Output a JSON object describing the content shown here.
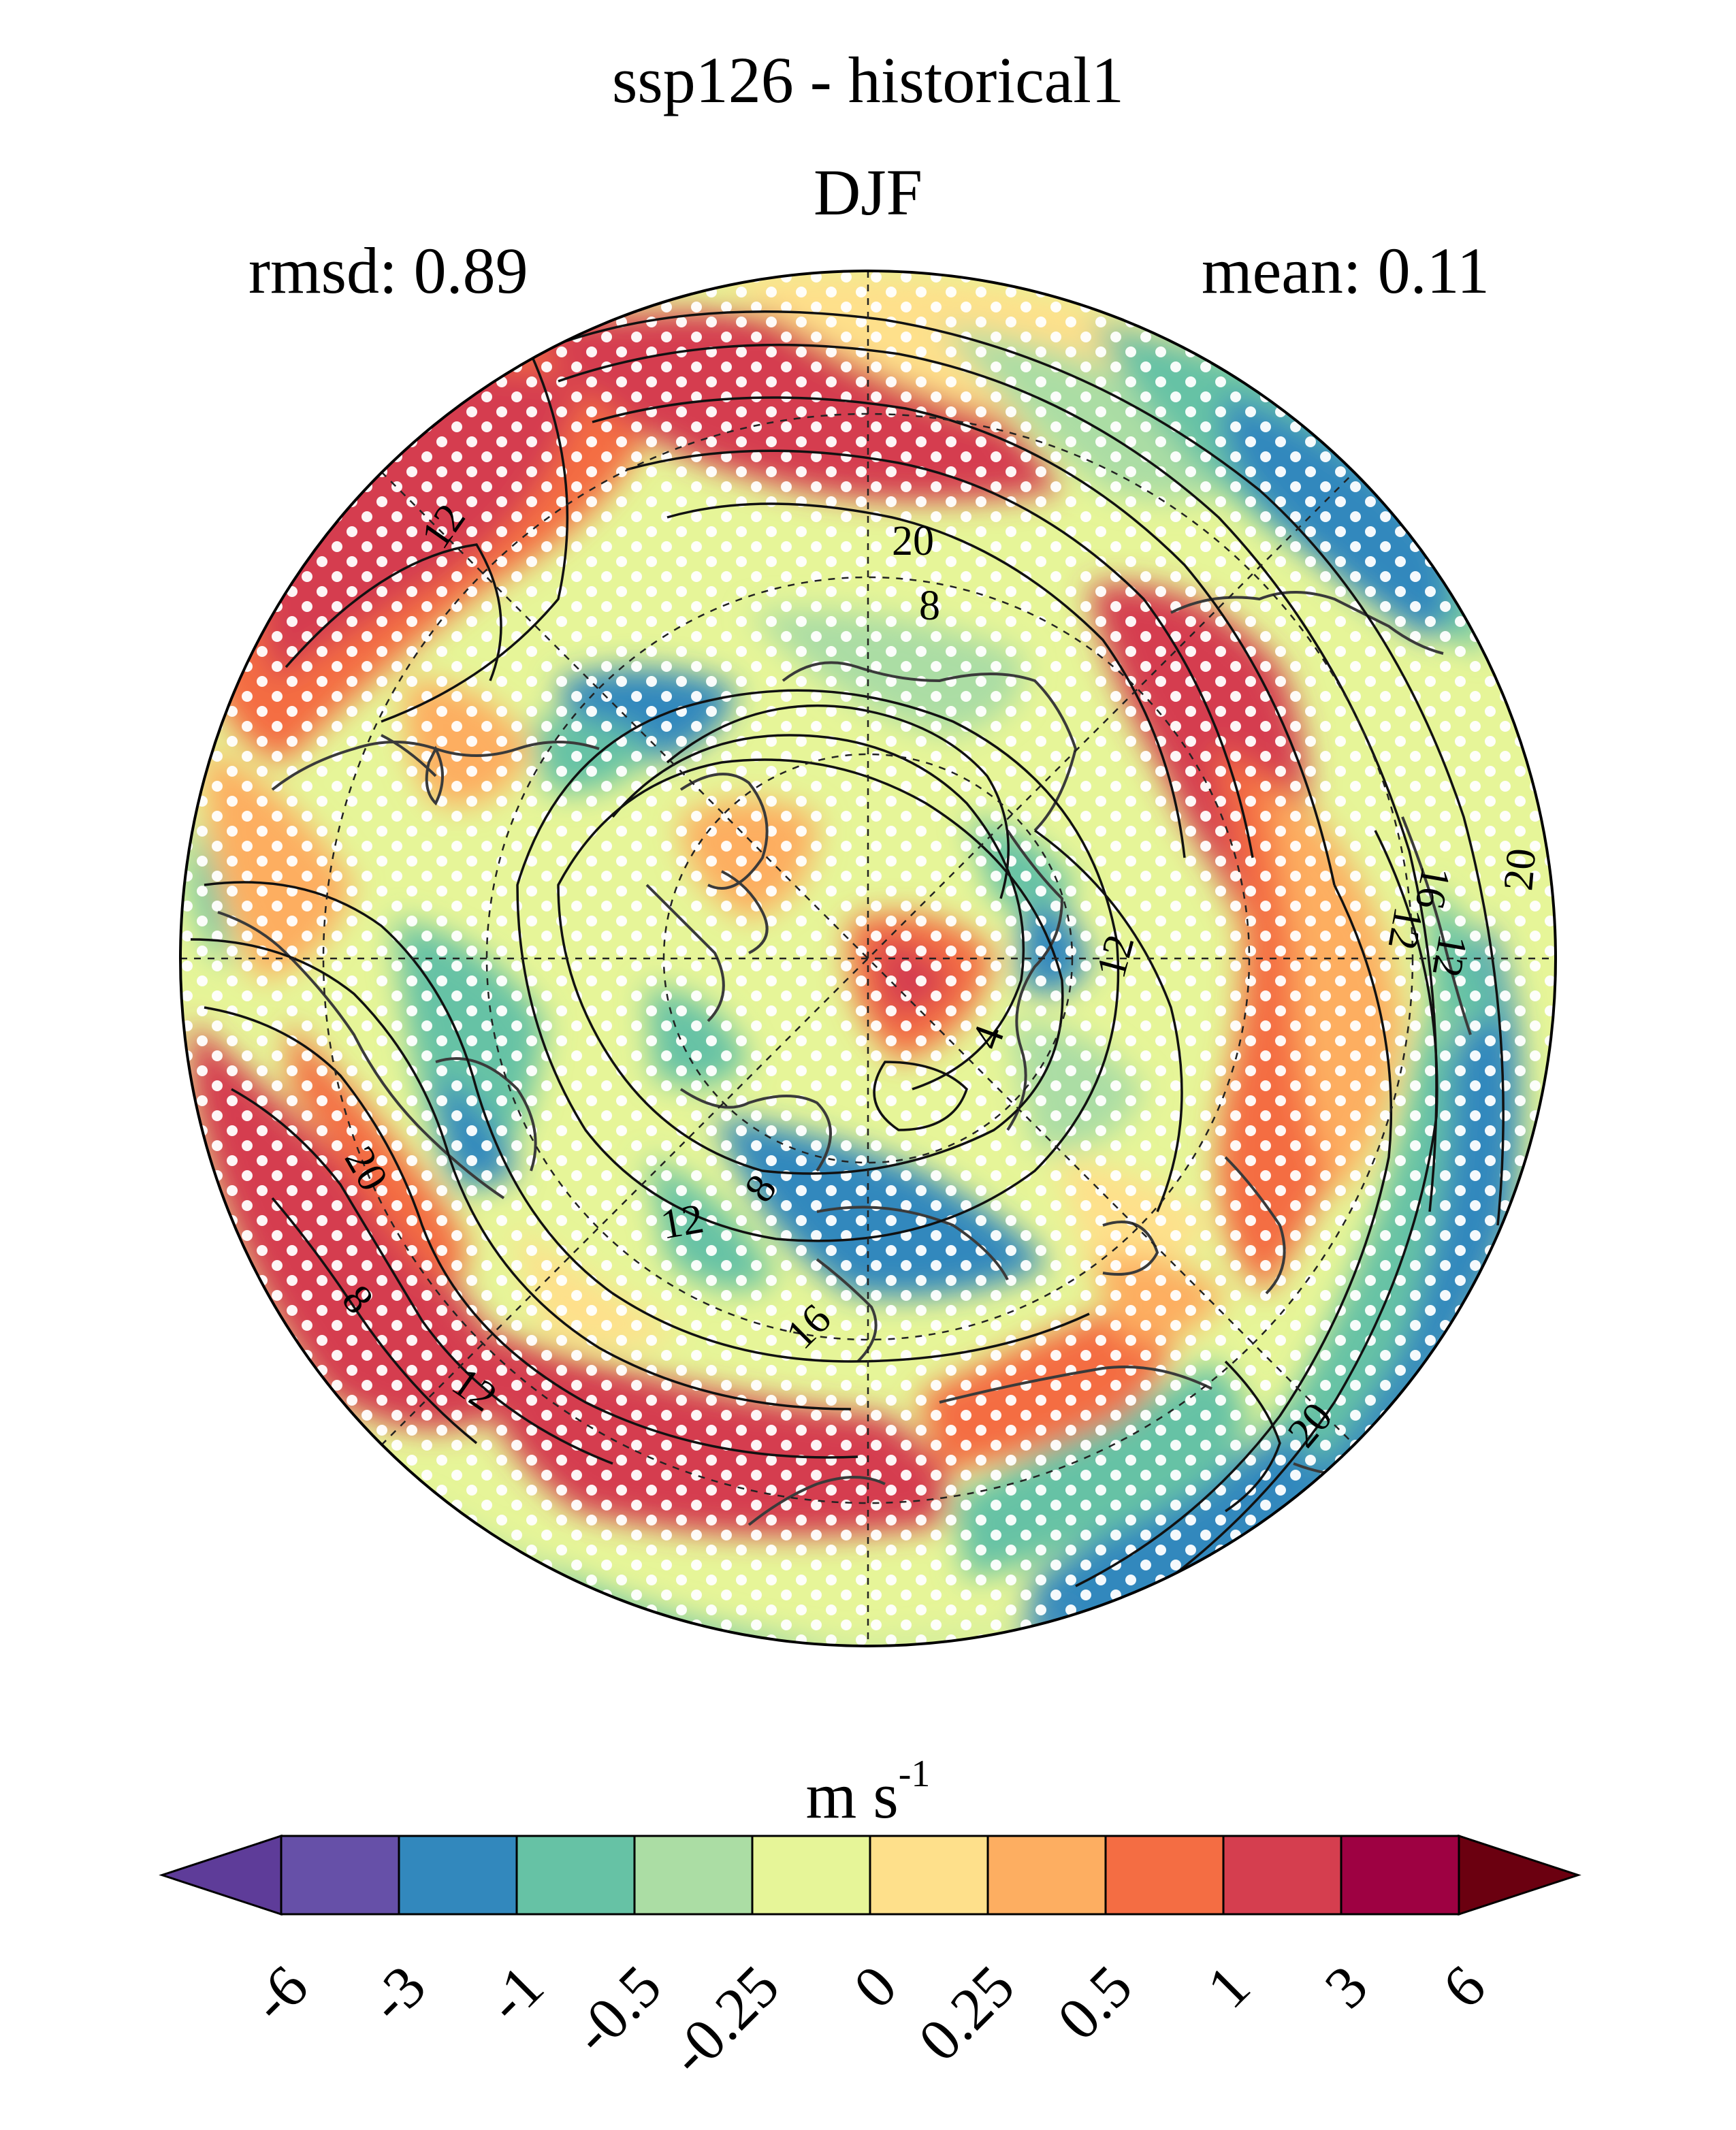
{
  "title": "ssp126 - historical1",
  "season": "DJF",
  "rmsd_label": "rmsd: 0.89",
  "mean_label": "mean: 0.11",
  "colorbar": {
    "units_main": "m s",
    "units_exp": "-1",
    "levels": [
      "-6",
      "-3",
      "-1",
      "-0.5",
      "-0.25",
      "0",
      "0.25",
      "0.5",
      "1",
      "3",
      "6"
    ],
    "colors": [
      "#5e3c99",
      "#6650a8",
      "#3288bd",
      "#66c2a5",
      "#abdda4",
      "#e6f598",
      "#fee08b",
      "#fdae61",
      "#f46d43",
      "#d53e4f",
      "#9e0142",
      "#6b0010"
    ]
  },
  "contour_labels": [
    "12",
    "20",
    "8",
    "16",
    "12",
    "20",
    "12",
    "4",
    "12",
    "8",
    "12",
    "16",
    "20",
    "8",
    "12",
    "20"
  ],
  "map": {
    "projection": "north-polar-stereographic",
    "stippling": "significance-dots"
  }
}
